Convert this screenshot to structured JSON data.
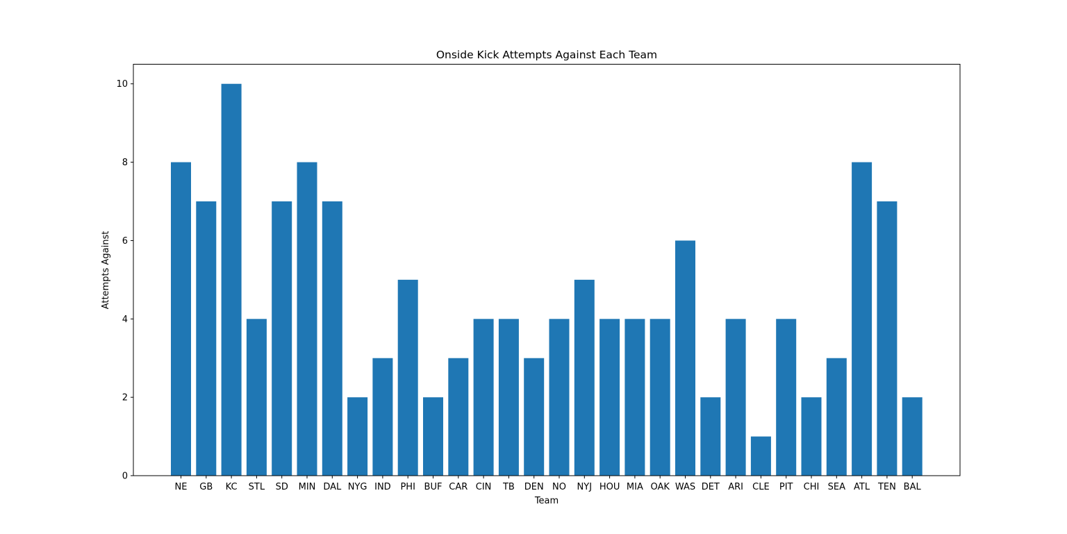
{
  "chart_data": {
    "type": "bar",
    "title": "Onside Kick Attempts Against Each Team",
    "xlabel": "Team",
    "ylabel": "Attempts Against",
    "categories": [
      "NE",
      "GB",
      "KC",
      "STL",
      "SD",
      "MIN",
      "DAL",
      "NYG",
      "IND",
      "PHI",
      "BUF",
      "CAR",
      "CIN",
      "TB",
      "DEN",
      "NO",
      "NYJ",
      "HOU",
      "MIA",
      "OAK",
      "WAS",
      "DET",
      "ARI",
      "CLE",
      "PIT",
      "CHI",
      "SEA",
      "ATL",
      "TEN",
      "BAL"
    ],
    "values": [
      8,
      7,
      10,
      4,
      7,
      8,
      7,
      2,
      3,
      5,
      2,
      3,
      4,
      4,
      3,
      4,
      5,
      4,
      4,
      4,
      6,
      2,
      4,
      1,
      4,
      2,
      3,
      8,
      7,
      2
    ],
    "ylim": [
      0,
      10.5
    ],
    "yticks": [
      0,
      2,
      4,
      6,
      8,
      10
    ],
    "grid": false,
    "bar_color": "#1f77b4"
  }
}
